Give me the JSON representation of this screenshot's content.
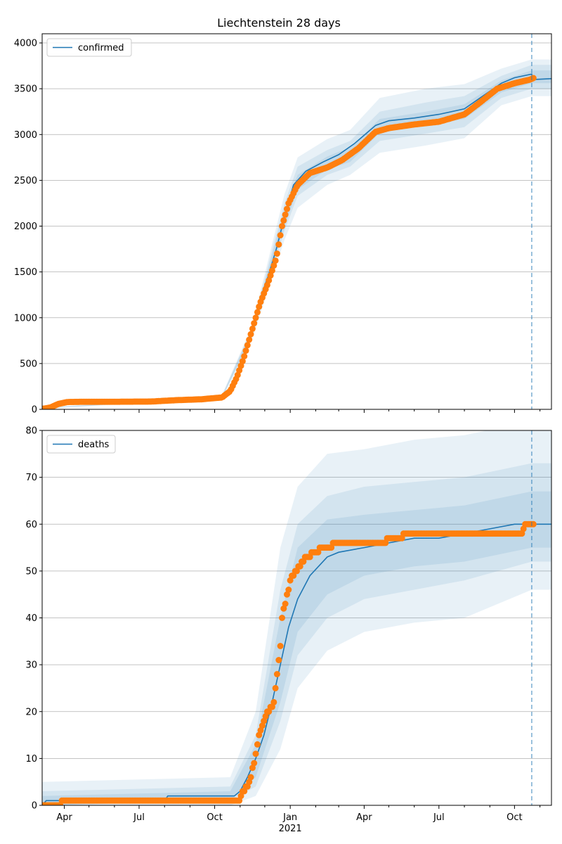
{
  "chart_data": [
    {
      "type": "line",
      "title": "Liechtenstein 28 days",
      "legend": {
        "label": "confirmed",
        "placement": "top-left"
      },
      "ylim": [
        0,
        4100
      ],
      "yticks": [
        0,
        500,
        1000,
        1500,
        2000,
        2500,
        3000,
        3500,
        4000
      ],
      "xlim": [
        "2020-03-05",
        "2021-11-15"
      ],
      "grid": "horizontal",
      "forecast_start": "2021-10-22",
      "fit_line": [
        [
          "2020-03-05",
          10
        ],
        [
          "2020-03-25",
          50
        ],
        [
          "2020-04-10",
          82
        ],
        [
          "2020-05-15",
          86
        ],
        [
          "2020-07-01",
          88
        ],
        [
          "2020-08-15",
          100
        ],
        [
          "2020-09-15",
          112
        ],
        [
          "2020-10-10",
          140
        ],
        [
          "2020-10-25",
          250
        ],
        [
          "2020-11-05",
          550
        ],
        [
          "2020-11-15",
          850
        ],
        [
          "2020-11-25",
          1200
        ],
        [
          "2020-12-05",
          1450
        ],
        [
          "2020-12-15",
          1750
        ],
        [
          "2020-12-25",
          2100
        ],
        [
          "2021-01-05",
          2450
        ],
        [
          "2021-01-20",
          2600
        ],
        [
          "2021-02-10",
          2700
        ],
        [
          "2021-03-01",
          2780
        ],
        [
          "2021-03-20",
          2900
        ],
        [
          "2021-04-15",
          3100
        ],
        [
          "2021-05-01",
          3150
        ],
        [
          "2021-06-01",
          3180
        ],
        [
          "2021-07-01",
          3220
        ],
        [
          "2021-08-01",
          3280
        ],
        [
          "2021-08-25",
          3430
        ],
        [
          "2021-09-15",
          3560
        ],
        [
          "2021-10-01",
          3620
        ],
        [
          "2021-10-22",
          3660
        ],
        [
          "2021-10-23",
          3600
        ],
        [
          "2021-11-15",
          3610
        ]
      ],
      "observed": [
        [
          "2020-03-05",
          5
        ],
        [
          "2020-03-15",
          20
        ],
        [
          "2020-03-25",
          60
        ],
        [
          "2020-04-05",
          80
        ],
        [
          "2020-04-20",
          82
        ],
        [
          "2020-06-01",
          83
        ],
        [
          "2020-07-15",
          85
        ],
        [
          "2020-08-15",
          100
        ],
        [
          "2020-09-15",
          110
        ],
        [
          "2020-10-10",
          130
        ],
        [
          "2020-10-20",
          200
        ],
        [
          "2020-10-28",
          350
        ],
        [
          "2020-11-05",
          550
        ],
        [
          "2020-11-15",
          850
        ],
        [
          "2020-11-25",
          1150
        ],
        [
          "2020-12-05",
          1380
        ],
        [
          "2020-12-15",
          1650
        ],
        [
          "2020-12-22",
          2000
        ],
        [
          "2020-12-30",
          2250
        ],
        [
          "2021-01-10",
          2450
        ],
        [
          "2021-01-25",
          2580
        ],
        [
          "2021-02-15",
          2640
        ],
        [
          "2021-03-05",
          2720
        ],
        [
          "2021-03-25",
          2850
        ],
        [
          "2021-04-15",
          3030
        ],
        [
          "2021-05-01",
          3070
        ],
        [
          "2021-06-01",
          3110
        ],
        [
          "2021-07-01",
          3140
        ],
        [
          "2021-08-01",
          3220
        ],
        [
          "2021-08-20",
          3350
        ],
        [
          "2021-09-10",
          3500
        ],
        [
          "2021-10-01",
          3560
        ],
        [
          "2021-10-20",
          3600
        ],
        [
          "2021-10-25",
          3620
        ]
      ],
      "bands": [
        {
          "upper": [
            [
              "2020-03-05",
              15
            ],
            [
              "2020-10-10",
              160
            ],
            [
              "2020-11-15",
              900
            ],
            [
              "2020-12-25",
              2350
            ],
            [
              "2021-01-10",
              2750
            ],
            [
              "2021-02-15",
              2950
            ],
            [
              "2021-03-15",
              3050
            ],
            [
              "2021-04-20",
              3400
            ],
            [
              "2021-06-15",
              3500
            ],
            [
              "2021-08-01",
              3550
            ],
            [
              "2021-09-15",
              3720
            ],
            [
              "2021-10-22",
              3820
            ],
            [
              "2021-11-15",
              3820
            ]
          ],
          "lower": [
            [
              "2020-03-05",
              5
            ],
            [
              "2020-10-10",
              120
            ],
            [
              "2020-11-15",
              750
            ],
            [
              "2020-12-25",
              1850
            ],
            [
              "2021-01-10",
              2200
            ],
            [
              "2021-02-15",
              2450
            ],
            [
              "2021-03-15",
              2560
            ],
            [
              "2021-04-20",
              2800
            ],
            [
              "2021-06-15",
              2880
            ],
            [
              "2021-08-01",
              2960
            ],
            [
              "2021-09-15",
              3320
            ],
            [
              "2021-10-22",
              3420
            ],
            [
              "2021-11-15",
              3420
            ]
          ]
        },
        {
          "upper": [
            [
              "2020-03-05",
              13
            ],
            [
              "2020-10-10",
              150
            ],
            [
              "2020-11-15",
              880
            ],
            [
              "2020-12-25",
              2250
            ],
            [
              "2021-01-10",
              2650
            ],
            [
              "2021-02-15",
              2830
            ],
            [
              "2021-03-15",
              2930
            ],
            [
              "2021-04-20",
              3250
            ],
            [
              "2021-06-15",
              3350
            ],
            [
              "2021-08-01",
              3420
            ],
            [
              "2021-09-15",
              3640
            ],
            [
              "2021-10-22",
              3760
            ],
            [
              "2021-11-15",
              3760
            ]
          ],
          "lower": [
            [
              "2020-03-05",
              7
            ],
            [
              "2020-10-10",
              128
            ],
            [
              "2020-11-15",
              780
            ],
            [
              "2020-12-25",
              1950
            ],
            [
              "2021-01-10",
              2330
            ],
            [
              "2021-02-15",
              2560
            ],
            [
              "2021-03-15",
              2650
            ],
            [
              "2021-04-20",
              2930
            ],
            [
              "2021-06-15",
              3010
            ],
            [
              "2021-08-01",
              3080
            ],
            [
              "2021-09-15",
              3400
            ],
            [
              "2021-10-22",
              3500
            ],
            [
              "2021-11-15",
              3500
            ]
          ]
        },
        {
          "upper": [
            [
              "2020-03-05",
              11
            ],
            [
              "2020-10-10",
              145
            ],
            [
              "2020-11-15",
              860
            ],
            [
              "2020-12-25",
              2180
            ],
            [
              "2021-01-10",
              2560
            ],
            [
              "2021-02-15",
              2760
            ],
            [
              "2021-03-15",
              2860
            ],
            [
              "2021-04-20",
              3170
            ],
            [
              "2021-06-15",
              3250
            ],
            [
              "2021-08-01",
              3330
            ],
            [
              "2021-09-15",
              3590
            ],
            [
              "2021-10-22",
              3700
            ],
            [
              "2021-11-15",
              3700
            ]
          ],
          "lower": [
            [
              "2020-03-05",
              8
            ],
            [
              "2020-10-10",
              132
            ],
            [
              "2020-11-15",
              800
            ],
            [
              "2020-12-25",
              2000
            ],
            [
              "2021-01-10",
              2400
            ],
            [
              "2021-02-15",
              2620
            ],
            [
              "2021-03-15",
              2700
            ],
            [
              "2021-04-20",
              3020
            ],
            [
              "2021-06-15",
              3100
            ],
            [
              "2021-08-01",
              3170
            ],
            [
              "2021-09-15",
              3460
            ],
            [
              "2021-10-22",
              3560
            ],
            [
              "2021-11-15",
              3560
            ]
          ]
        }
      ]
    },
    {
      "type": "line",
      "legend": {
        "label": "deaths",
        "placement": "top-left"
      },
      "ylim": [
        0,
        80
      ],
      "yticks": [
        0,
        10,
        20,
        30,
        40,
        50,
        60,
        70,
        80
      ],
      "xlim": [
        "2020-03-05",
        "2021-11-15"
      ],
      "xticks": [
        "Apr",
        "Jul",
        "Oct",
        "Jan",
        "Apr",
        "Jul",
        "Oct"
      ],
      "xtick_dates": [
        "2020-04-01",
        "2020-07-01",
        "2020-10-01",
        "2021-01-01",
        "2021-04-01",
        "2021-07-01",
        "2021-10-01"
      ],
      "year_label": "2021",
      "grid": "horizontal",
      "forecast_start": "2021-10-22",
      "fit_line": [
        [
          "2020-03-05",
          0
        ],
        [
          "2020-03-10",
          1
        ],
        [
          "2020-08-01",
          1
        ],
        [
          "2020-08-05",
          2
        ],
        [
          "2020-10-25",
          2
        ],
        [
          "2020-11-01",
          3
        ],
        [
          "2020-11-10",
          6
        ],
        [
          "2020-11-20",
          10
        ],
        [
          "2020-11-30",
          15
        ],
        [
          "2020-12-10",
          22
        ],
        [
          "2020-12-20",
          30
        ],
        [
          "2020-12-30",
          38
        ],
        [
          "2021-01-10",
          44
        ],
        [
          "2021-01-25",
          49
        ],
        [
          "2021-02-15",
          53
        ],
        [
          "2021-03-01",
          54
        ],
        [
          "2021-04-01",
          55
        ],
        [
          "2021-05-01",
          56
        ],
        [
          "2021-06-01",
          57
        ],
        [
          "2021-07-01",
          57
        ],
        [
          "2021-08-01",
          58
        ],
        [
          "2021-09-01",
          59
        ],
        [
          "2021-10-01",
          60
        ],
        [
          "2021-11-15",
          60
        ]
      ],
      "observed": [
        [
          "2020-03-05",
          0
        ],
        [
          "2020-03-25",
          0
        ],
        [
          "2020-04-01",
          1
        ],
        [
          "2020-06-01",
          1
        ],
        [
          "2020-08-01",
          1
        ],
        [
          "2020-10-01",
          1
        ],
        [
          "2020-10-30",
          1
        ],
        [
          "2020-11-05",
          3
        ],
        [
          "2020-11-12",
          5
        ],
        [
          "2020-11-18",
          9
        ],
        [
          "2020-11-23",
          14
        ],
        [
          "2020-11-28",
          17
        ],
        [
          "2020-12-05",
          20
        ],
        [
          "2020-12-12",
          22
        ],
        [
          "2020-12-17",
          30
        ],
        [
          "2020-12-20",
          34
        ],
        [
          "2020-12-22",
          40
        ],
        [
          "2020-12-27",
          44
        ],
        [
          "2021-01-01",
          48
        ],
        [
          "2021-01-08",
          50
        ],
        [
          "2021-01-20",
          53
        ],
        [
          "2021-02-10",
          55
        ],
        [
          "2021-03-05",
          56
        ],
        [
          "2021-04-20",
          56
        ],
        [
          "2021-05-05",
          57
        ],
        [
          "2021-06-01",
          58
        ],
        [
          "2021-08-01",
          58
        ],
        [
          "2021-10-10",
          58
        ],
        [
          "2021-10-15",
          60
        ],
        [
          "2021-10-25",
          60
        ]
      ],
      "bands": [
        {
          "upper": [
            [
              "2020-03-05",
              5
            ],
            [
              "2020-10-20",
              6
            ],
            [
              "2020-11-20",
              20
            ],
            [
              "2020-12-20",
              55
            ],
            [
              "2021-01-10",
              68
            ],
            [
              "2021-02-15",
              75
            ],
            [
              "2021-04-01",
              76
            ],
            [
              "2021-06-01",
              78
            ],
            [
              "2021-08-01",
              79
            ],
            [
              "2021-10-22",
              82
            ],
            [
              "2021-11-15",
              82
            ]
          ],
          "lower": [
            [
              "2020-03-05",
              0
            ],
            [
              "2020-10-20",
              0
            ],
            [
              "2020-11-20",
              2
            ],
            [
              "2020-12-20",
              12
            ],
            [
              "2021-01-10",
              25
            ],
            [
              "2021-02-15",
              33
            ],
            [
              "2021-04-01",
              37
            ],
            [
              "2021-06-01",
              39
            ],
            [
              "2021-08-01",
              40
            ],
            [
              "2021-10-22",
              46
            ],
            [
              "2021-11-15",
              46
            ]
          ]
        },
        {
          "upper": [
            [
              "2020-03-05",
              3
            ],
            [
              "2020-10-20",
              4
            ],
            [
              "2020-11-20",
              15
            ],
            [
              "2020-12-20",
              46
            ],
            [
              "2021-01-10",
              60
            ],
            [
              "2021-02-15",
              66
            ],
            [
              "2021-04-01",
              68
            ],
            [
              "2021-06-01",
              69
            ],
            [
              "2021-08-01",
              70
            ],
            [
              "2021-10-22",
              73
            ],
            [
              "2021-11-15",
              73
            ]
          ],
          "lower": [
            [
              "2020-03-05",
              0
            ],
            [
              "2020-10-20",
              1
            ],
            [
              "2020-11-20",
              4
            ],
            [
              "2020-12-20",
              18
            ],
            [
              "2021-01-10",
              32
            ],
            [
              "2021-02-15",
              40
            ],
            [
              "2021-04-01",
              44
            ],
            [
              "2021-06-01",
              46
            ],
            [
              "2021-08-01",
              48
            ],
            [
              "2021-10-22",
              52
            ],
            [
              "2021-11-15",
              52
            ]
          ]
        },
        {
          "upper": [
            [
              "2020-03-05",
              2
            ],
            [
              "2020-10-20",
              3
            ],
            [
              "2020-11-20",
              13
            ],
            [
              "2020-12-20",
              40
            ],
            [
              "2021-01-10",
              55
            ],
            [
              "2021-02-15",
              61
            ],
            [
              "2021-04-01",
              62
            ],
            [
              "2021-06-01",
              63
            ],
            [
              "2021-08-01",
              64
            ],
            [
              "2021-10-22",
              67
            ],
            [
              "2021-11-15",
              67
            ]
          ],
          "lower": [
            [
              "2020-03-05",
              0
            ],
            [
              "2020-10-20",
              1
            ],
            [
              "2020-11-20",
              6
            ],
            [
              "2020-12-20",
              22
            ],
            [
              "2021-01-10",
              37
            ],
            [
              "2021-02-15",
              45
            ],
            [
              "2021-04-01",
              49
            ],
            [
              "2021-06-01",
              51
            ],
            [
              "2021-08-01",
              52
            ],
            [
              "2021-10-22",
              55
            ],
            [
              "2021-11-15",
              55
            ]
          ]
        }
      ]
    }
  ],
  "colors": {
    "line": "#1f77b4",
    "points": "#ff7f0e",
    "band": "#1f77b4",
    "grid": "#b0b0b0",
    "axis": "#000000"
  }
}
